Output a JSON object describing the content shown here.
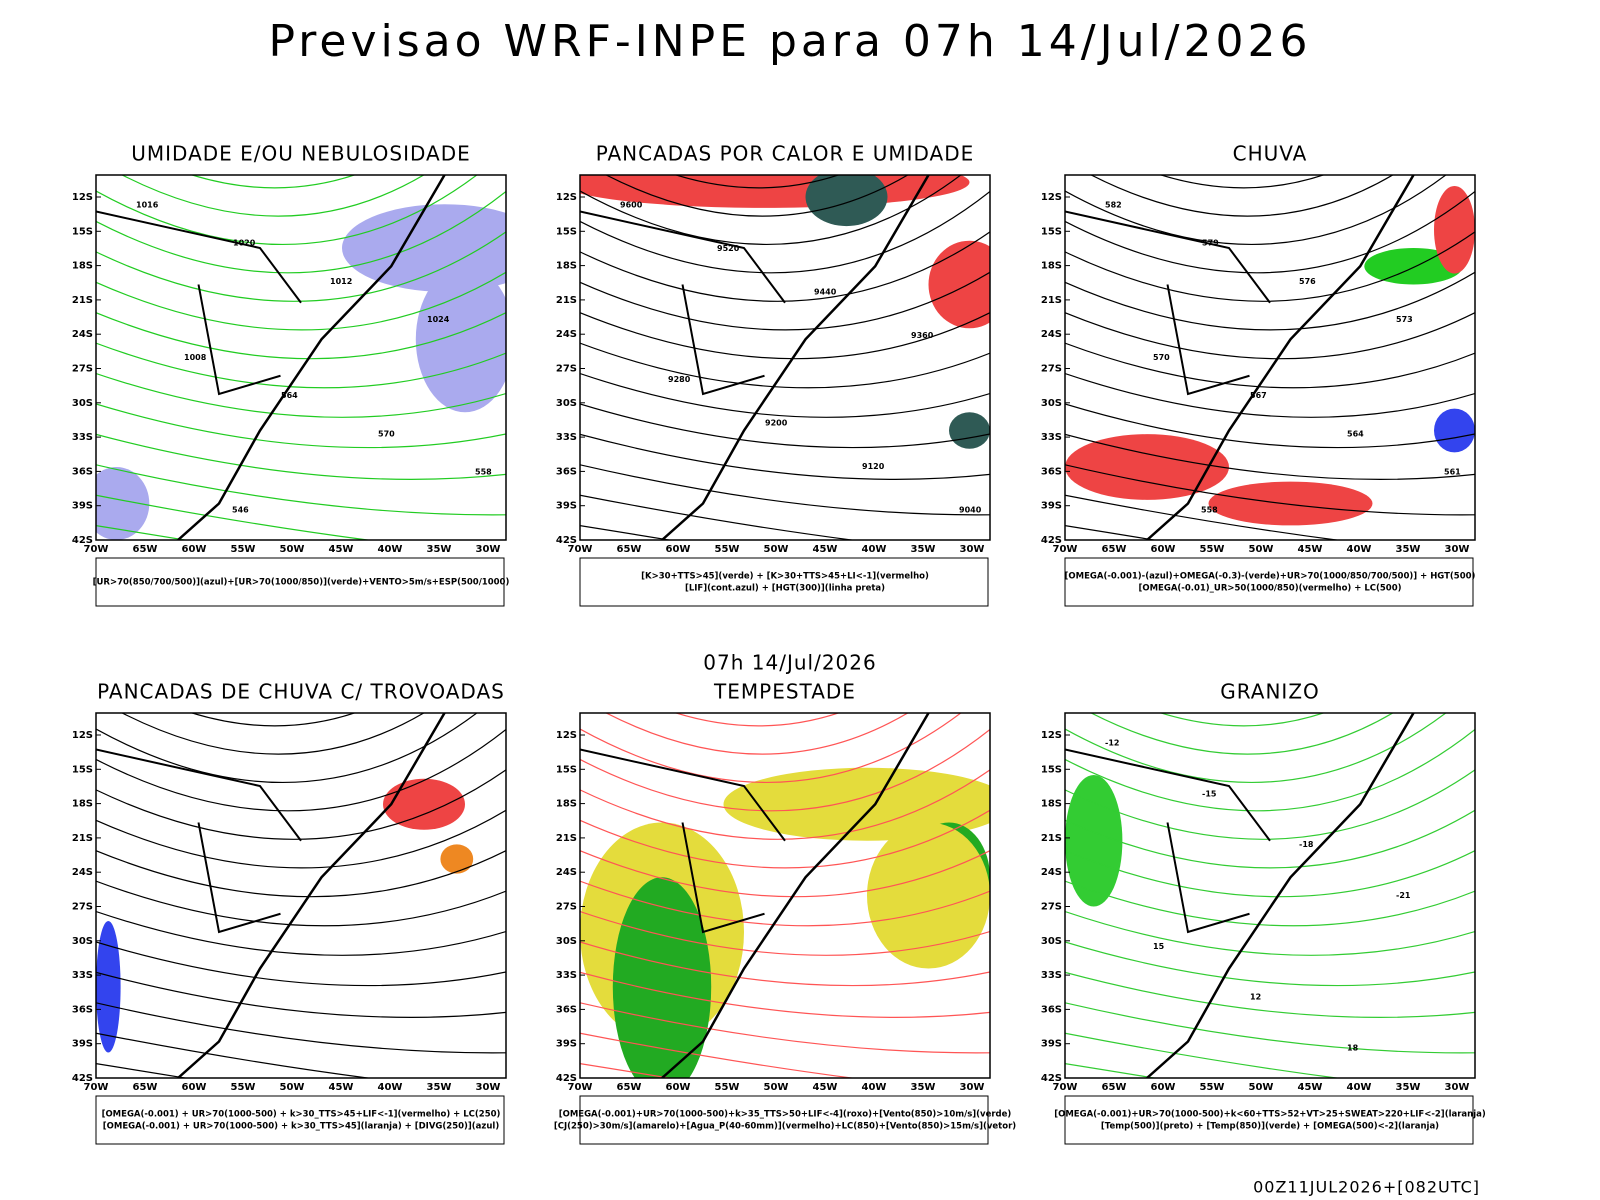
{
  "header": {
    "title": "Previsao WRF-INPE  para 07h 14/Jul/2026"
  },
  "middle_label": "07h 14/Jul/2026",
  "lat_labels": [
    "12S",
    "15S",
    "18S",
    "21S",
    "24S",
    "27S",
    "30S",
    "33S",
    "36S",
    "39S",
    "42S"
  ],
  "lon_labels": [
    "70W",
    "65W",
    "60W",
    "55W",
    "50W",
    "45W",
    "40W",
    "35W",
    "30W"
  ],
  "panels": [
    {
      "title": "UMIDADE E/OU NEBULOSIDADE",
      "legend": [
        "[UR>70(850/700/500)](azul)+[UR>70(1000/850)](verde)+VENTO>5m/s+ESP(500/1000)"
      ],
      "contour_labels": [
        "1016",
        "1020",
        "1012",
        "1024",
        "1008",
        "564",
        "570",
        "558",
        "546"
      ]
    },
    {
      "title": "PANCADAS POR CALOR E UMIDADE",
      "legend": [
        "[K>30+TTS>45](verde) + [K>30+TTS>45+LI<-1](vermelho)",
        "[LIF](cont.azul) + [HGT(300)](linha preta)"
      ],
      "contour_labels": [
        "9600",
        "9520",
        "9440",
        "9360",
        "9280",
        "9200",
        "9120",
        "9040"
      ]
    },
    {
      "title": "CHUVA",
      "legend": [
        "[OMEGA(-0.001)-(azul)+OMEGA(-0.3)-(verde)+UR>70(1000/850/700/500)] + HGT(500)",
        "[OMEGA(-0.01)_UR>50(1000/850)(vermelho) + LC(500)"
      ],
      "contour_labels": [
        "582",
        "579",
        "576",
        "573",
        "570",
        "567",
        "564",
        "561",
        "558"
      ]
    },
    {
      "title": "PANCADAS DE CHUVA C/ TROVOADAS",
      "legend": [
        "[OMEGA(-0.001) + UR>70(1000-500) + k>30_TTS>45+LIF<-1](vermelho) + LC(250)",
        "[OMEGA(-0.001) + UR>70(1000-500) + k>30_TTS>45](laranja) + [DIVG(250)](azul)"
      ],
      "contour_labels": []
    },
    {
      "title": "TEMPESTADE",
      "legend": [
        "[OMEGA(-0.001)+UR>70(1000-500)+k>35_TTS>50+LIF<-4](roxo)+[Vento(850)>10m/s](verde)",
        "[CJ(250)>30m/s](amarelo)+[Agua_P(40-60mm)](vermelho)+LC(850)+[Vento(850)>15m/s](vetor)"
      ],
      "contour_labels": []
    },
    {
      "title": "GRANIZO",
      "legend": [
        "[OMEGA(-0.001)+UR>70(1000-500)+k<60+TTS>52+VT>25+SWEAT>220+LIF<-2](laranja)",
        "[Temp(500)](preto) + [Temp(850)](verde) + [OMEGA(500)<-2](laranja)"
      ],
      "contour_labels": [
        "-12",
        "-15",
        "-18",
        "-21",
        "15",
        "12",
        "18"
      ]
    }
  ],
  "footer": "00Z11JUL2026+[082UTC]"
}
